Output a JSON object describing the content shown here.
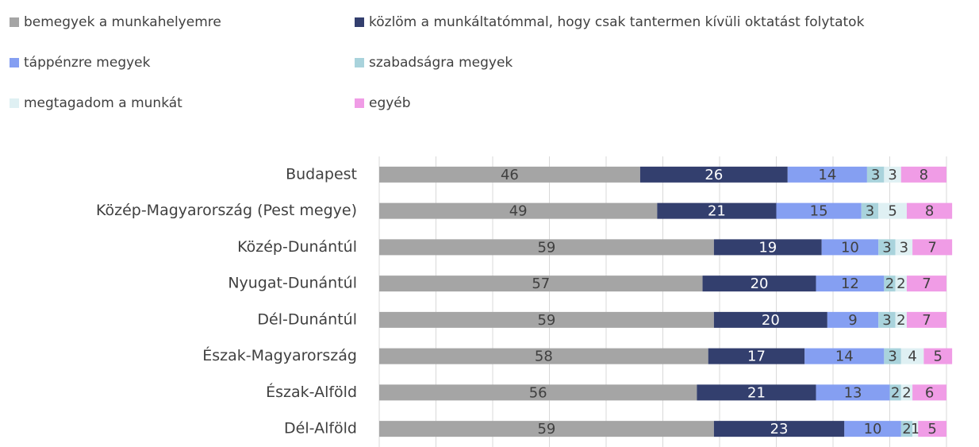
{
  "chart_data": {
    "type": "stacked-bar-horizontal",
    "categories": [
      "Budapest",
      "Közép-Magyarország (Pest megye)",
      "Közép-Dunántúl",
      "Nyugat-Dunántúl",
      "Dél-Dunántúl",
      "Észak-Magyarország",
      "Észak-Alföld",
      "Dél-Alföld"
    ],
    "series": [
      {
        "name": "bemegyek a munkahelyemre",
        "color": "#a5a5a5",
        "values": [
          46,
          49,
          59,
          57,
          59,
          58,
          56,
          59
        ]
      },
      {
        "name": "közlöm a munkáltatómmal, hogy csak tantermen kívüli oktatást folytatok",
        "color": "#333f6e",
        "values": [
          26,
          21,
          19,
          20,
          20,
          17,
          21,
          23
        ]
      },
      {
        "name": "táppénzre megyek",
        "color": "#859ff2",
        "values": [
          14,
          15,
          10,
          12,
          9,
          14,
          13,
          10
        ]
      },
      {
        "name": "szabadságra megyek",
        "color": "#a9d3dc",
        "values": [
          3,
          3,
          3,
          2,
          3,
          3,
          2,
          2
        ]
      },
      {
        "name": "megtagadom a munkát",
        "color": "#dff0f3",
        "values": [
          3,
          5,
          3,
          2,
          2,
          4,
          2,
          1
        ]
      },
      {
        "name": "egyéb",
        "color": "#f09ce6",
        "values": [
          8,
          8,
          7,
          7,
          7,
          5,
          6,
          5
        ]
      }
    ],
    "xlim": [
      0,
      100
    ],
    "xticks": [
      0,
      10,
      20,
      30,
      40,
      50,
      60,
      70,
      80,
      90,
      100
    ],
    "grid": true,
    "legend": "top"
  }
}
